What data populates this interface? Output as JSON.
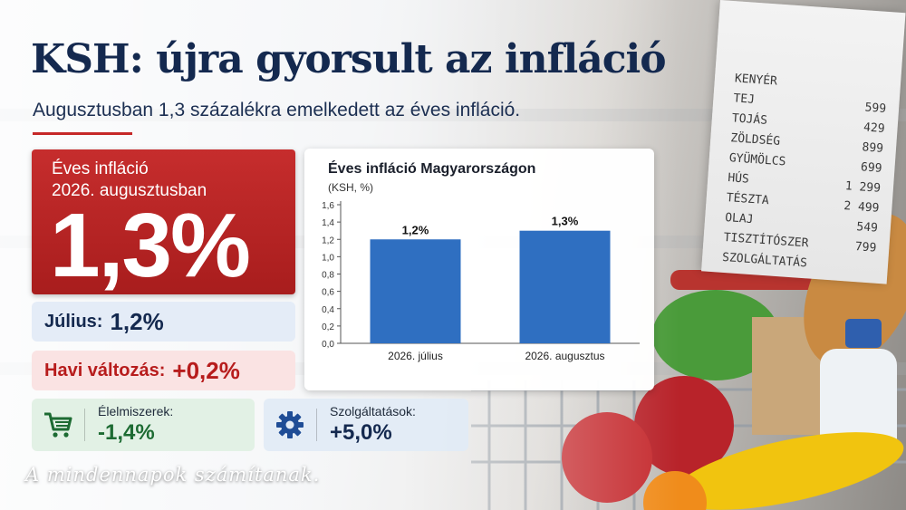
{
  "header": {
    "title": "KSH: újra gyorsult az infláció",
    "subtitle": "Augusztusban 1,3 százalékra emelkedett az éves infláció."
  },
  "headline_card": {
    "label_line1": "Éves infláció",
    "label_line2": "2026. augusztusban",
    "value": "1,3%"
  },
  "july_pill": {
    "label": "Július:",
    "value": "1,2%"
  },
  "monthly_change_pill": {
    "label": "Havi változás:",
    "value": "+0,2%"
  },
  "food_card": {
    "icon": "shopping-cart-icon",
    "label": "Élelmiszerek:",
    "value": "-1,4%"
  },
  "services_card": {
    "icon": "gear-icon",
    "label": "Szolgáltatások:",
    "value": "+5,0%"
  },
  "receipt": {
    "items": [
      {
        "name": "KENYÉR",
        "price": ""
      },
      {
        "name": "TEJ",
        "price": "599"
      },
      {
        "name": "TOJÁS",
        "price": "429"
      },
      {
        "name": "ZÖLDSÉG",
        "price": "899"
      },
      {
        "name": "GYÜMÖLCS",
        "price": "699"
      },
      {
        "name": "HÚS",
        "price": "1 299"
      },
      {
        "name": "TÉSZTA",
        "price": "2 499"
      },
      {
        "name": "OLAJ",
        "price": "549"
      },
      {
        "name": "TISZTÍTÓSZER",
        "price": "799"
      },
      {
        "name": "SZOLGÁLTATÁS",
        "price": ""
      }
    ]
  },
  "tagline": "A mindennapok számítanak.",
  "colors": {
    "brand_red": "#c62828",
    "navy": "#14294f",
    "bar_blue": "#2f6fc1",
    "green": "#1d6b33"
  },
  "chart_data": {
    "type": "bar",
    "title": "Éves infláció Magyarországon",
    "subtitle": "(KSH, %)",
    "categories": [
      "2026. július",
      "2026. augusztus"
    ],
    "values": [
      1.2,
      1.3
    ],
    "data_labels": [
      "1,2%",
      "1,3%"
    ],
    "ylim": [
      0,
      1.6
    ],
    "yticks": [
      0.0,
      0.2,
      0.4,
      0.6,
      0.8,
      1.0,
      1.2,
      1.4,
      1.6
    ],
    "ytick_labels": [
      "0,0",
      "0,2",
      "0,4",
      "0,6",
      "0,8",
      "1,0",
      "1,2",
      "1,4",
      "1,6"
    ],
    "xlabel": "",
    "ylabel": "",
    "grid": false
  }
}
